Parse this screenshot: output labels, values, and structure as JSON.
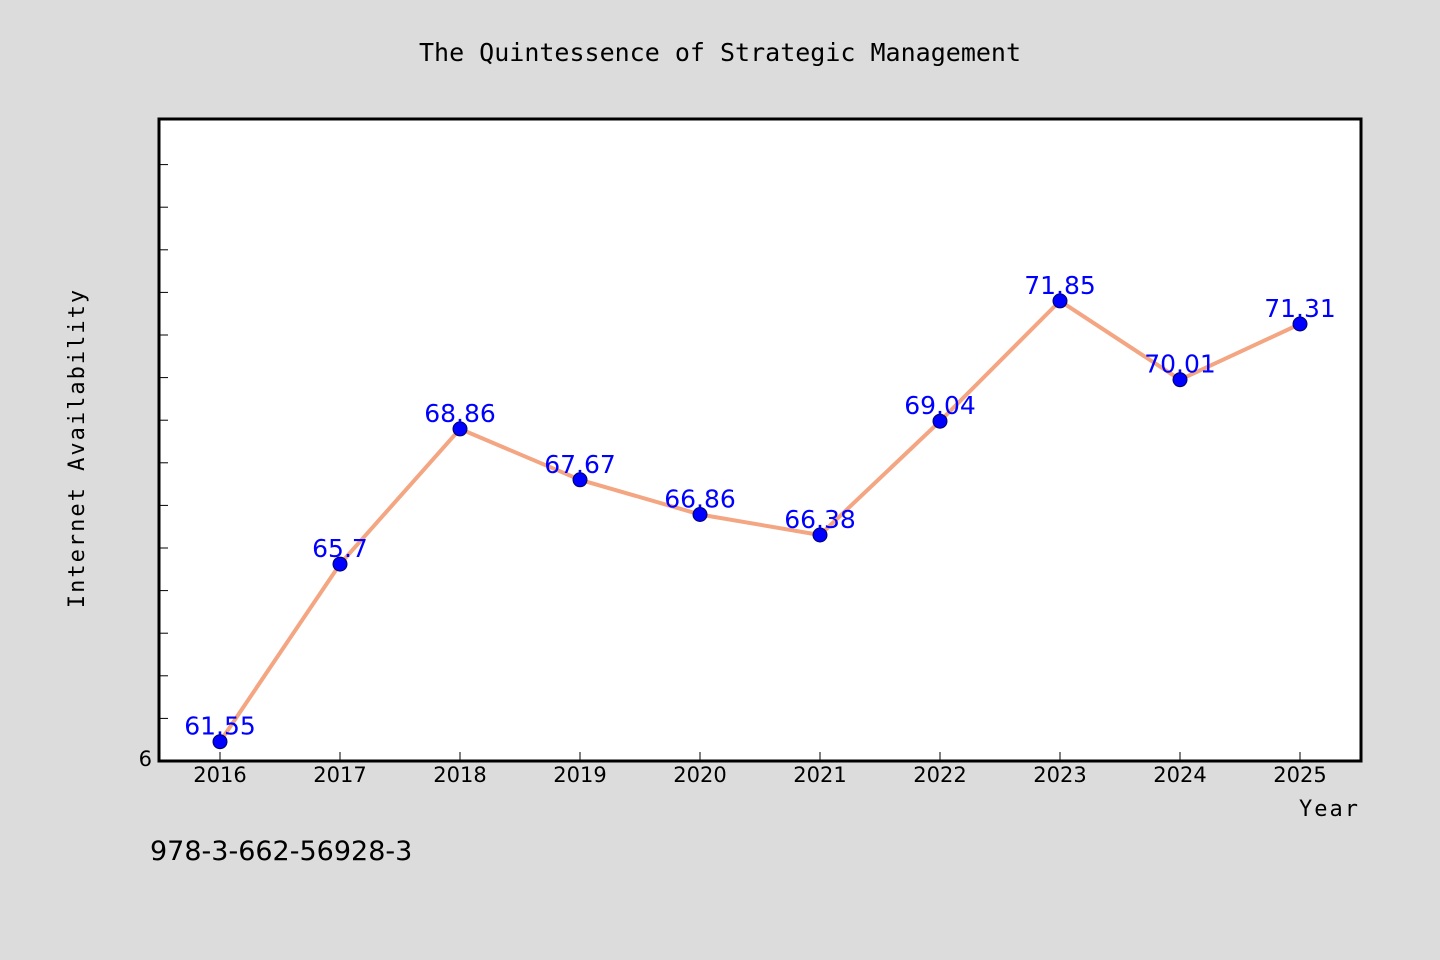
{
  "chart_data": {
    "type": "line",
    "title": "The Quintessence of Strategic Management",
    "xlabel": "Year",
    "ylabel": "Internet Availability",
    "categories": [
      "2016",
      "2017",
      "2018",
      "2019",
      "2020",
      "2021",
      "2022",
      "2023",
      "2024",
      "2025"
    ],
    "values": [
      61.55,
      65.7,
      68.86,
      67.67,
      66.86,
      66.38,
      69.04,
      71.85,
      70.01,
      71.31
    ],
    "data_labels": [
      "61.55",
      "65.7",
      "68.86",
      "67.67",
      "66.86",
      "66.38",
      "69.04",
      "71.85",
      "70.01",
      "71.31"
    ],
    "y_tick_label": "6",
    "ylim": [
      61.1,
      76.1
    ],
    "grid": false,
    "line_color": "#f4a582",
    "marker_color": "#0000ff",
    "label_color": "#0000ff"
  },
  "footnote": "978-3-662-56928-3",
  "colors": {
    "background": "#dcdcdc",
    "plot_background": "#ffffff"
  }
}
